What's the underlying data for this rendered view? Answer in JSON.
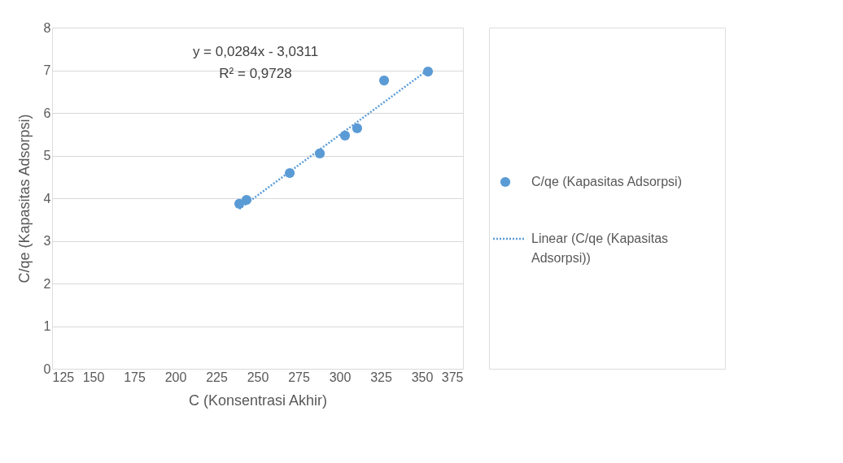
{
  "chart_data": {
    "type": "scatter",
    "xlabel": "C (Konsentrasi Akhir)",
    "ylabel": "C/qe (Kapasitas Adsorpsi)",
    "series": [
      {
        "name": "C/qe (Kapasitas Adsorpsi)",
        "type": "scatter",
        "color": "#5b9bd5",
        "marker": "circle",
        "x": [
          238.9,
          243.3,
          269.6,
          287.9,
          303.2,
          310.6,
          327.0,
          353.7
        ],
        "values": [
          3.87,
          3.96,
          4.59,
          5.05,
          5.47,
          5.64,
          6.76,
          6.97
        ]
      },
      {
        "name": "Linear (C/qe (Kapasitas Adsorpsi))",
        "type": "line",
        "color": "#5b9bd5",
        "line_style": "dotted",
        "x": [
          238.9,
          353.7
        ],
        "values": [
          3.75,
          7.01
        ]
      }
    ],
    "annotations": [
      "y = 0,0284x - 3,0311",
      "R² = 0,9728"
    ],
    "xlim": [
      125,
      375
    ],
    "xticks": [
      125,
      150,
      175,
      200,
      225,
      250,
      275,
      300,
      325,
      350,
      375
    ],
    "ylim": [
      0,
      8
    ],
    "yticks": [
      0,
      1,
      2,
      3,
      4,
      5,
      6,
      7,
      8
    ],
    "grid": "y",
    "legend": "right"
  }
}
